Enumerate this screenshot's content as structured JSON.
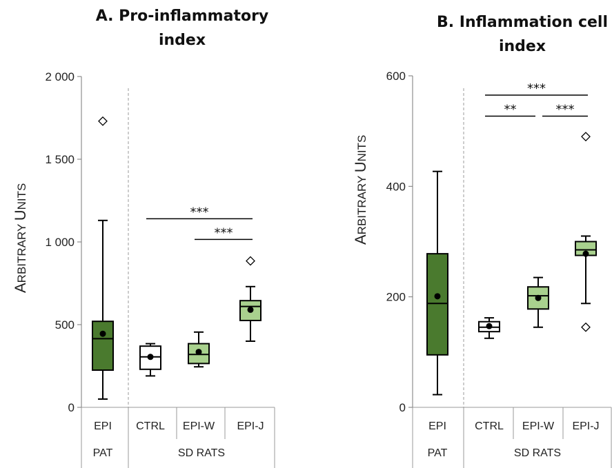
{
  "chart_data": [
    {
      "type": "box",
      "title_lines": [
        "A.   Pro-inflammatory",
        "index"
      ],
      "ylabel_first": [
        "A",
        "RBITRARY "
      ],
      "ylabel_second": [
        "U",
        "NITS"
      ],
      "yticks": [
        "0",
        "500",
        "1 000",
        "1 500",
        "2 000"
      ],
      "ylim": [
        0,
        2000
      ],
      "groups": [
        {
          "label": "PAT",
          "categories": [
            "EPI"
          ]
        },
        {
          "label": "SD RATS",
          "categories": [
            "CTRL",
            "EPI-W",
            "EPI-J"
          ]
        }
      ],
      "boxes": [
        {
          "category": "EPI",
          "fill": "#4a7a2e",
          "whisker_low": 50,
          "q1": 225,
          "median": 415,
          "q3": 520,
          "whisker_high": 1130,
          "mean": 445,
          "outliers": [
            1730
          ]
        },
        {
          "category": "CTRL",
          "fill": "#ffffff",
          "whisker_low": 190,
          "q1": 230,
          "median": 305,
          "q3": 370,
          "whisker_high": 385,
          "mean": 305,
          "outliers": []
        },
        {
          "category": "EPI-W",
          "fill": "#a9d18e",
          "whisker_low": 245,
          "q1": 265,
          "median": 320,
          "q3": 385,
          "whisker_high": 455,
          "mean": 335,
          "outliers": []
        },
        {
          "category": "EPI-J",
          "fill": "#a9d18e",
          "whisker_low": 400,
          "q1": 525,
          "median": 610,
          "q3": 645,
          "whisker_high": 730,
          "mean": 590,
          "outliers": [
            885
          ]
        }
      ],
      "significance": [
        {
          "from": "CTRL",
          "to": "EPI-J",
          "label": "***",
          "y": 1140
        },
        {
          "from": "EPI-W",
          "to": "EPI-J",
          "label": "***",
          "y": 1015
        }
      ]
    },
    {
      "type": "box",
      "title_lines": [
        "B. Inflammation cell",
        "index"
      ],
      "ylabel_first": [
        "A",
        "RBITRARY "
      ],
      "ylabel_second": [
        "U",
        "NITS"
      ],
      "yticks": [
        "0",
        "200",
        "400",
        "600"
      ],
      "ylim": [
        0,
        600
      ],
      "groups": [
        {
          "label": "PAT",
          "categories": [
            "EPI"
          ]
        },
        {
          "label": "SD RATS",
          "categories": [
            "CTRL",
            "EPI-W",
            "EPI-J"
          ]
        }
      ],
      "boxes": [
        {
          "category": "EPI",
          "fill": "#4a7a2e",
          "whisker_low": 23,
          "q1": 95,
          "median": 188,
          "q3": 278,
          "whisker_high": 427,
          "mean": 201,
          "outliers": []
        },
        {
          "category": "CTRL",
          "fill": "#ffffff",
          "whisker_low": 125,
          "q1": 137,
          "median": 145,
          "q3": 155,
          "whisker_high": 162,
          "mean": 147,
          "outliers": []
        },
        {
          "category": "EPI-W",
          "fill": "#a9d18e",
          "whisker_low": 145,
          "q1": 178,
          "median": 202,
          "q3": 218,
          "whisker_high": 235,
          "mean": 198,
          "outliers": []
        },
        {
          "category": "EPI-J",
          "fill": "#a9d18e",
          "whisker_low": 188,
          "q1": 275,
          "median": 285,
          "q3": 300,
          "whisker_high": 310,
          "mean": 278,
          "outliers": [
            145,
            490
          ]
        }
      ],
      "significance": [
        {
          "from": "CTRL",
          "to": "EPI-J",
          "label": "***",
          "y": 565
        },
        {
          "from": "CTRL",
          "to": "EPI-W",
          "label": "**",
          "y": 527
        },
        {
          "from": "EPI-W",
          "to": "EPI-J",
          "label": "***",
          "y": 527
        }
      ]
    }
  ]
}
